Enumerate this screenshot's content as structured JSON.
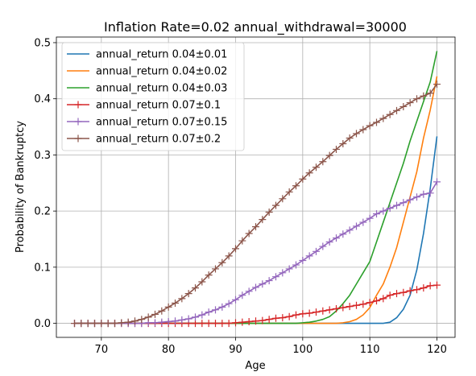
{
  "chart_data": {
    "type": "line",
    "title": "Inflation Rate=0.02 annual_withdrawal=30000",
    "xlabel": "Age",
    "ylabel": "Probability of Bankruptcy",
    "xlim": [
      63.3,
      122.7
    ],
    "ylim": [
      -0.025,
      0.51
    ],
    "xticks": [
      70,
      80,
      90,
      100,
      110,
      120
    ],
    "yticks": [
      0.0,
      0.1,
      0.2,
      0.3,
      0.4,
      0.5
    ],
    "xtick_labels": [
      "70",
      "80",
      "90",
      "100",
      "110",
      "120"
    ],
    "ytick_labels": [
      "0.0",
      "0.1",
      "0.2",
      "0.3",
      "0.4",
      "0.5"
    ],
    "grid": true,
    "legend_position": "upper-left",
    "series": [
      {
        "name": "annual_return 0.04±0.01",
        "color": "#1f77b4",
        "marker": "none",
        "x": [
          66,
          67,
          68,
          69,
          70,
          71,
          72,
          73,
          74,
          75,
          76,
          77,
          78,
          79,
          80,
          81,
          82,
          83,
          84,
          85,
          86,
          87,
          88,
          89,
          90,
          91,
          92,
          93,
          94,
          95,
          96,
          97,
          98,
          99,
          100,
          101,
          102,
          103,
          104,
          105,
          106,
          107,
          108,
          109,
          110,
          111,
          112,
          113,
          114,
          115,
          116,
          117,
          118,
          119,
          120
        ],
        "values": [
          0,
          0,
          0,
          0,
          0,
          0,
          0,
          0,
          0,
          0,
          0,
          0,
          0,
          0,
          0,
          0,
          0,
          0,
          0,
          0,
          0,
          0,
          0,
          0,
          0,
          0,
          0,
          0,
          0,
          0,
          0,
          0,
          0,
          0,
          0,
          0,
          0,
          0,
          0,
          0,
          0,
          0,
          0,
          0,
          0,
          0,
          0,
          0.002,
          0.01,
          0.025,
          0.05,
          0.095,
          0.16,
          0.24,
          0.333
        ]
      },
      {
        "name": "annual_return 0.04±0.02",
        "color": "#ff7f0e",
        "marker": "none",
        "x": [
          66,
          67,
          68,
          69,
          70,
          71,
          72,
          73,
          74,
          75,
          76,
          77,
          78,
          79,
          80,
          81,
          82,
          83,
          84,
          85,
          86,
          87,
          88,
          89,
          90,
          91,
          92,
          93,
          94,
          95,
          96,
          97,
          98,
          99,
          100,
          101,
          102,
          103,
          104,
          105,
          106,
          107,
          108,
          109,
          110,
          111,
          112,
          113,
          114,
          115,
          116,
          117,
          118,
          119,
          120
        ],
        "values": [
          0,
          0,
          0,
          0,
          0,
          0,
          0,
          0,
          0,
          0,
          0,
          0,
          0,
          0,
          0,
          0,
          0,
          0,
          0,
          0,
          0,
          0,
          0,
          0,
          0,
          0,
          0,
          0,
          0,
          0,
          0,
          0,
          0,
          0,
          0,
          0,
          0,
          0,
          0,
          0,
          0.001,
          0.003,
          0.007,
          0.015,
          0.028,
          0.05,
          0.07,
          0.1,
          0.135,
          0.18,
          0.225,
          0.27,
          0.33,
          0.38,
          0.44
        ]
      },
      {
        "name": "annual_return 0.04±0.03",
        "color": "#2ca02c",
        "marker": "none",
        "x": [
          66,
          67,
          68,
          69,
          70,
          71,
          72,
          73,
          74,
          75,
          76,
          77,
          78,
          79,
          80,
          81,
          82,
          83,
          84,
          85,
          86,
          87,
          88,
          89,
          90,
          91,
          92,
          93,
          94,
          95,
          96,
          97,
          98,
          99,
          100,
          101,
          102,
          103,
          104,
          105,
          106,
          107,
          108,
          109,
          110,
          111,
          112,
          113,
          114,
          115,
          116,
          117,
          118,
          119,
          120
        ],
        "values": [
          0,
          0,
          0,
          0,
          0,
          0,
          0,
          0,
          0,
          0,
          0,
          0,
          0,
          0,
          0,
          0,
          0,
          0,
          0,
          0,
          0,
          0,
          0,
          0,
          0,
          0,
          0,
          0,
          0,
          0,
          0,
          0,
          0,
          0,
          0.001,
          0.002,
          0.004,
          0.007,
          0.012,
          0.022,
          0.035,
          0.05,
          0.07,
          0.09,
          0.11,
          0.145,
          0.18,
          0.215,
          0.25,
          0.285,
          0.325,
          0.36,
          0.395,
          0.43,
          0.485
        ]
      },
      {
        "name": "annual_return 0.07±0.1",
        "color": "#d62728",
        "marker": "+",
        "x": [
          66,
          67,
          68,
          69,
          70,
          71,
          72,
          73,
          74,
          75,
          76,
          77,
          78,
          79,
          80,
          81,
          82,
          83,
          84,
          85,
          86,
          87,
          88,
          89,
          90,
          91,
          92,
          93,
          94,
          95,
          96,
          97,
          98,
          99,
          100,
          101,
          102,
          103,
          104,
          105,
          106,
          107,
          108,
          109,
          110,
          111,
          112,
          113,
          114,
          115,
          116,
          117,
          118,
          119,
          120
        ],
        "values": [
          0,
          0,
          0,
          0,
          0,
          0,
          0,
          0,
          0,
          0,
          0,
          0,
          0,
          0,
          0,
          0,
          0,
          0,
          0,
          0,
          0,
          0,
          0,
          0,
          0.001,
          0.002,
          0.003,
          0.004,
          0.005,
          0.007,
          0.009,
          0.01,
          0.012,
          0.015,
          0.017,
          0.018,
          0.02,
          0.022,
          0.024,
          0.026,
          0.028,
          0.03,
          0.032,
          0.034,
          0.037,
          0.04,
          0.044,
          0.05,
          0.053,
          0.055,
          0.058,
          0.06,
          0.063,
          0.067,
          0.068
        ]
      },
      {
        "name": "annual_return 0.07±0.15",
        "color": "#9467bd",
        "marker": "+",
        "x": [
          66,
          67,
          68,
          69,
          70,
          71,
          72,
          73,
          74,
          75,
          76,
          77,
          78,
          79,
          80,
          81,
          82,
          83,
          84,
          85,
          86,
          87,
          88,
          89,
          90,
          91,
          92,
          93,
          94,
          95,
          96,
          97,
          98,
          99,
          100,
          101,
          102,
          103,
          104,
          105,
          106,
          107,
          108,
          109,
          110,
          111,
          112,
          113,
          114,
          115,
          116,
          117,
          118,
          119,
          120
        ],
        "values": [
          0,
          0,
          0,
          0,
          0,
          0,
          0,
          0,
          0,
          0,
          0,
          0.001,
          0.001,
          0.002,
          0.003,
          0.004,
          0.006,
          0.008,
          0.011,
          0.015,
          0.02,
          0.024,
          0.029,
          0.035,
          0.042,
          0.05,
          0.057,
          0.064,
          0.07,
          0.076,
          0.083,
          0.09,
          0.097,
          0.104,
          0.112,
          0.12,
          0.128,
          0.137,
          0.145,
          0.152,
          0.159,
          0.166,
          0.173,
          0.18,
          0.187,
          0.195,
          0.2,
          0.205,
          0.21,
          0.215,
          0.22,
          0.225,
          0.23,
          0.232,
          0.252
        ]
      },
      {
        "name": "annual_return 0.07±0.2",
        "color": "#8c564b",
        "marker": "+",
        "x": [
          66,
          67,
          68,
          69,
          70,
          71,
          72,
          73,
          74,
          75,
          76,
          77,
          78,
          79,
          80,
          81,
          82,
          83,
          84,
          85,
          86,
          87,
          88,
          89,
          90,
          91,
          92,
          93,
          94,
          95,
          96,
          97,
          98,
          99,
          100,
          101,
          102,
          103,
          104,
          105,
          106,
          107,
          108,
          109,
          110,
          111,
          112,
          113,
          114,
          115,
          116,
          117,
          118,
          119,
          120
        ],
        "values": [
          0,
          0,
          0,
          0,
          0,
          0,
          0,
          0.001,
          0.002,
          0.004,
          0.007,
          0.011,
          0.016,
          0.022,
          0.029,
          0.036,
          0.044,
          0.053,
          0.063,
          0.074,
          0.086,
          0.097,
          0.108,
          0.12,
          0.133,
          0.147,
          0.16,
          0.172,
          0.185,
          0.198,
          0.21,
          0.222,
          0.234,
          0.245,
          0.257,
          0.268,
          0.278,
          0.288,
          0.299,
          0.31,
          0.32,
          0.33,
          0.338,
          0.345,
          0.352,
          0.358,
          0.365,
          0.372,
          0.379,
          0.386,
          0.393,
          0.4,
          0.405,
          0.41,
          0.426
        ]
      }
    ]
  }
}
